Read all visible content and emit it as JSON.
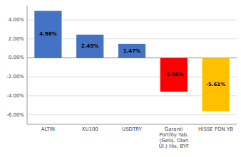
{
  "chart_data": {
    "type": "bar",
    "categories": [
      "ALTIN",
      "XU100",
      "USDTRY",
      "Garanti\nPortföy Yab.\n(Geliş. Olan\nÜl.) His. BYF",
      "HİSSE FON YB"
    ],
    "values": [
      4.96,
      2.45,
      1.47,
      -3.56,
      -5.61
    ],
    "value_labels": [
      "4.96%",
      "2.45%",
      "1.47%",
      "-3.56%",
      "-5.61%"
    ],
    "colors": [
      "#4472C4",
      "#4472C4",
      "#4472C4",
      "#FF0000",
      "#FFC000"
    ],
    "ylim": [
      -7,
      5.5
    ],
    "yticks": [
      {
        "value": -6,
        "label": "-6.00%"
      },
      {
        "value": -4,
        "label": "-4.00%"
      },
      {
        "value": -2,
        "label": "-2.00%"
      },
      {
        "value": 0,
        "label": "0.00%"
      },
      {
        "value": 2,
        "label": "2.00%"
      },
      {
        "value": 4,
        "label": "4.00%"
      }
    ],
    "grid": true,
    "data_labels": true
  }
}
